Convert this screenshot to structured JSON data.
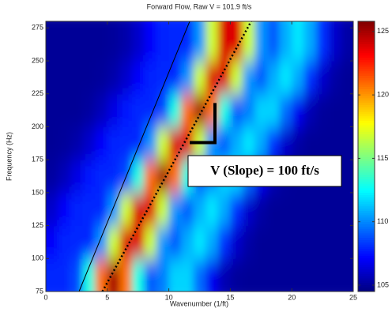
{
  "chart_data": {
    "type": "heatmap",
    "title": "Forward Flow, Raw V = 101.9 ft/s",
    "xlabel": "Wavenumber (1/ft)",
    "ylabel": "Frequency (Hz)",
    "annotation": "V (Slope) = 100 ft/s",
    "colormap": "jet",
    "xlim": [
      0,
      25
    ],
    "ylim": [
      75,
      280
    ],
    "clim": [
      104.5,
      125.8
    ],
    "xticks": [
      0,
      5,
      10,
      15,
      20,
      25
    ],
    "yticks": [
      75,
      100,
      125,
      150,
      175,
      200,
      225,
      250,
      275
    ],
    "cticks": [
      105,
      110,
      115,
      120,
      125
    ],
    "x": [
      0.5,
      1.5,
      2.5,
      3.5,
      4.5,
      5.5,
      6.5,
      7.5,
      8.5,
      9.5,
      10.5,
      11.5,
      12.5,
      13.5,
      14.5,
      15.5,
      16.5,
      17.5,
      18.5,
      19.5,
      20.5,
      21.5,
      22.5,
      23.5,
      24.5
    ],
    "y": [
      87.5,
      112.5,
      137.5,
      162.5,
      187.5,
      212.5,
      237.5,
      262.5
    ],
    "z": [
      [
        108,
        108,
        108.7,
        113.1,
        120.8,
        125,
        120.7,
        113,
        109,
        109.8,
        111.6,
        111.6,
        109.4,
        106.9,
        105.6,
        105.1,
        105,
        105,
        105,
        105,
        105,
        105,
        105,
        105,
        105
      ],
      [
        107.1,
        107.9,
        108,
        108,
        110.3,
        116.8,
        123.9,
        123.8,
        116.7,
        110.3,
        109,
        110.8,
        112,
        110.7,
        108.1,
        106.1,
        105.3,
        105,
        105,
        105,
        105,
        105,
        105,
        105,
        105
      ],
      [
        106.1,
        107.1,
        107.9,
        108,
        108,
        110.3,
        116.8,
        123.9,
        123.8,
        116.7,
        110.3,
        109,
        110.8,
        112,
        110.7,
        108.1,
        106.1,
        105.3,
        105,
        105,
        105,
        105,
        105,
        105,
        105
      ],
      [
        105.2,
        105.7,
        106.6,
        107.6,
        108,
        108,
        108.7,
        113.1,
        120.8,
        125,
        120.7,
        113,
        109,
        109.8,
        111.6,
        111.6,
        109.4,
        106.9,
        105.6,
        105.1,
        105,
        105,
        105,
        105,
        105
      ],
      [
        105,
        105.1,
        105.4,
        106.1,
        107.1,
        107.9,
        108,
        108,
        110.3,
        116.8,
        123.9,
        123.8,
        116.7,
        110.3,
        109,
        110.8,
        112,
        110.7,
        108.1,
        106.1,
        105.3,
        105,
        105,
        105,
        105
      ],
      [
        105,
        105,
        105,
        105.2,
        105.7,
        106.6,
        107.6,
        108,
        108,
        108.7,
        113.1,
        120.8,
        125,
        120.7,
        113,
        109,
        109.8,
        111.6,
        111.6,
        109.4,
        106.9,
        105.6,
        105.1,
        105,
        105
      ],
      [
        105,
        105,
        105,
        105,
        105.1,
        105.4,
        106.1,
        107.1,
        107.9,
        108,
        108,
        110.3,
        116.8,
        123.9,
        123.8,
        116.7,
        110.3,
        109,
        110.8,
        112,
        110.7,
        108.1,
        106.1,
        105.3,
        105
      ],
      [
        105,
        105,
        105,
        105,
        105,
        105.1,
        105.4,
        106.1,
        107.1,
        107.9,
        108,
        108,
        110.3,
        116.8,
        123.9,
        123.8,
        116.7,
        110.3,
        109,
        110.8,
        112,
        110.7,
        108.1,
        106.1,
        105.3
      ]
    ],
    "lines": [
      {
        "x": [
          2.7,
          11.7
        ],
        "y": [
          75,
          280
        ],
        "color": "#000000",
        "style": "solid",
        "width": 1
      },
      {
        "x": [
          4.6,
          16.7
        ],
        "y": [
          75,
          280
        ],
        "color": "#000000",
        "style": "dotted",
        "width": 2.5
      },
      {
        "x": [
          11.7,
          13.75,
          13.75
        ],
        "y": [
          188,
          188,
          218
        ],
        "color": "#000000",
        "style": "solid",
        "width": 4
      }
    ]
  }
}
